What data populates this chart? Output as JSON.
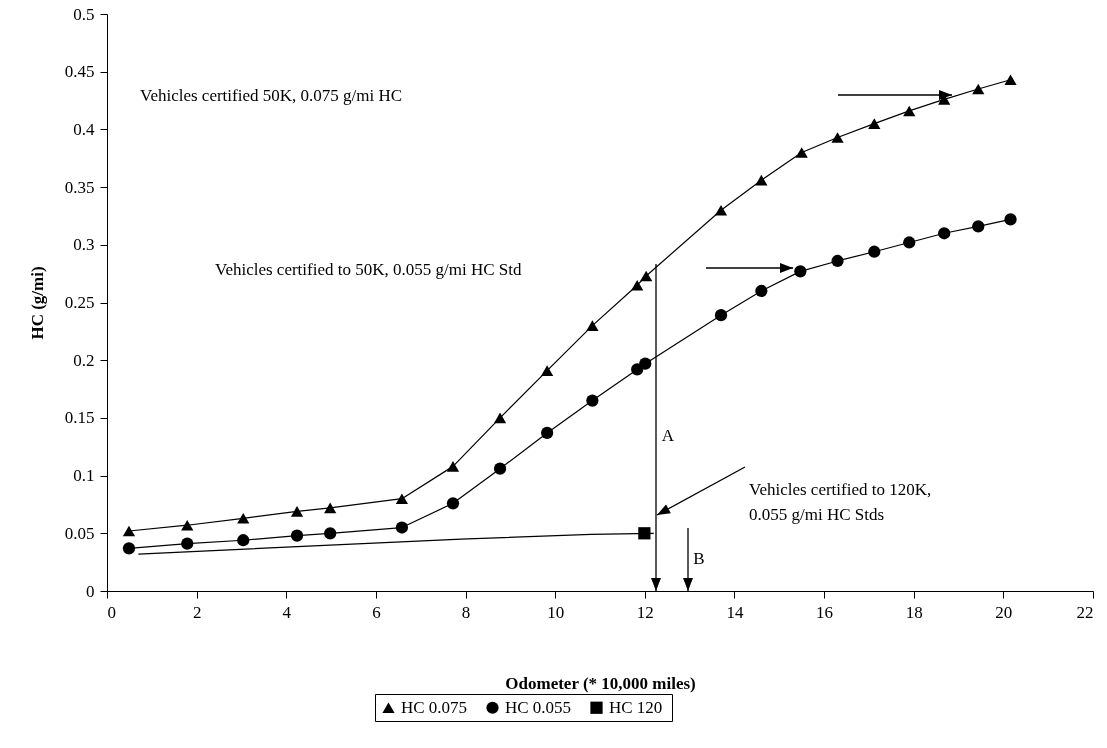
{
  "chart_data": {
    "type": "line",
    "xlabel": "Odometer (* 10,000 miles)",
    "ylabel": "HC (g/mi)",
    "xlim": [
      0,
      22
    ],
    "xticks": [
      0,
      2,
      4,
      6,
      8,
      10,
      12,
      14,
      16,
      18,
      20,
      22
    ],
    "ylim": [
      0,
      0.5
    ],
    "yticks": [
      0,
      0.05,
      0.1,
      0.15,
      0.2,
      0.25,
      0.3,
      0.35,
      0.4,
      0.45,
      0.5
    ],
    "legend": "bottom",
    "series": [
      {
        "name": "HC  0.075",
        "color": "#000000",
        "marker": "triangle",
        "x": [
          0.49,
          1.79,
          3.04,
          4.24,
          4.98,
          6.58,
          7.72,
          8.77,
          9.82,
          10.83,
          11.83,
          12.03,
          13.7,
          14.6,
          15.5,
          16.3,
          17.12,
          17.9,
          18.68,
          19.44,
          20.16
        ],
        "values": [
          0.052,
          0.057,
          0.063,
          0.069,
          0.072,
          0.08,
          0.108,
          0.15,
          0.191,
          0.23,
          0.265,
          0.273,
          0.33,
          0.356,
          0.38,
          0.393,
          0.405,
          0.416,
          0.426,
          0.435,
          0.443
        ]
      },
      {
        "name": "HC  0.055",
        "color": "#000000",
        "marker": "circle",
        "x": [
          0.49,
          1.79,
          3.04,
          4.24,
          4.98,
          6.58,
          7.72,
          8.77,
          9.82,
          10.83,
          11.83,
          12.01,
          13.7,
          14.6,
          15.47,
          16.3,
          17.12,
          17.9,
          18.68,
          19.44,
          20.16
        ],
        "values": [
          0.037,
          0.041,
          0.044,
          0.048,
          0.05,
          0.055,
          0.076,
          0.106,
          0.137,
          0.165,
          0.192,
          0.197,
          0.239,
          0.26,
          0.277,
          0.286,
          0.294,
          0.302,
          0.31,
          0.316,
          0.322
        ]
      },
      {
        "name": "HC  120",
        "color": "#000000",
        "type": "scatter",
        "marker": "square",
        "x": [
          11.99
        ],
        "values": [
          0.05
        ]
      },
      {
        "color": "#000000",
        "type": "line",
        "marker": "none",
        "x": [
          0.7,
          4,
          7.9,
          10.8,
          12.2
        ],
        "values": [
          0.032,
          0.038,
          0.045,
          0.049,
          0.05
        ]
      }
    ],
    "annotations": [
      "Vehicles certified 50K, 0.075 g/mi HC",
      "Vehicles certified to 50K, 0.055 g/mi HC Std",
      "Vehicles certified to 120K, 0.055 g/mi HC Stds",
      "A",
      "B"
    ]
  }
}
